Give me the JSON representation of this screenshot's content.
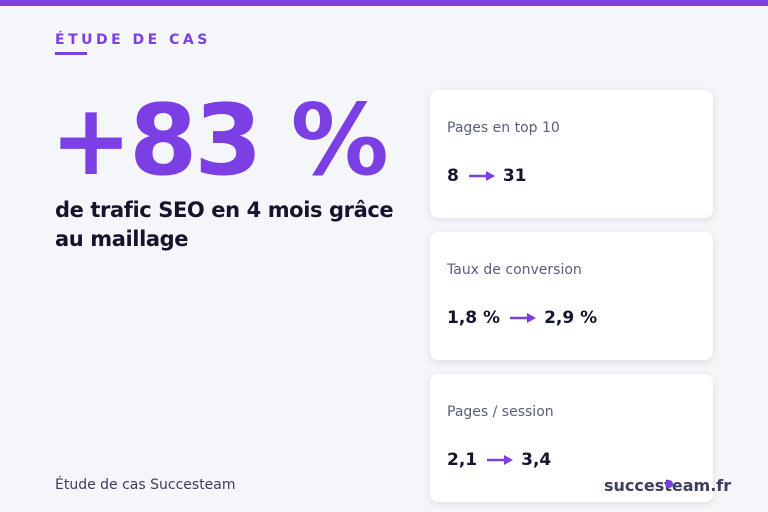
{
  "eyebrow": "ÉTUDE DE CAS",
  "headline": "+83 %",
  "subtitle": "de trafic SEO en 4 mois grâce au maillage",
  "cards": [
    {
      "label": "Pages en top 10",
      "before": "8",
      "after": "31"
    },
    {
      "label": "Taux de conversion",
      "before": "1,8 %",
      "after": "2,9 %"
    },
    {
      "label": "Pages / session",
      "before": "2,1",
      "after": "3,4"
    }
  ],
  "footer": "Étude de cas Succesteam",
  "brand": "succesteam.fr"
}
